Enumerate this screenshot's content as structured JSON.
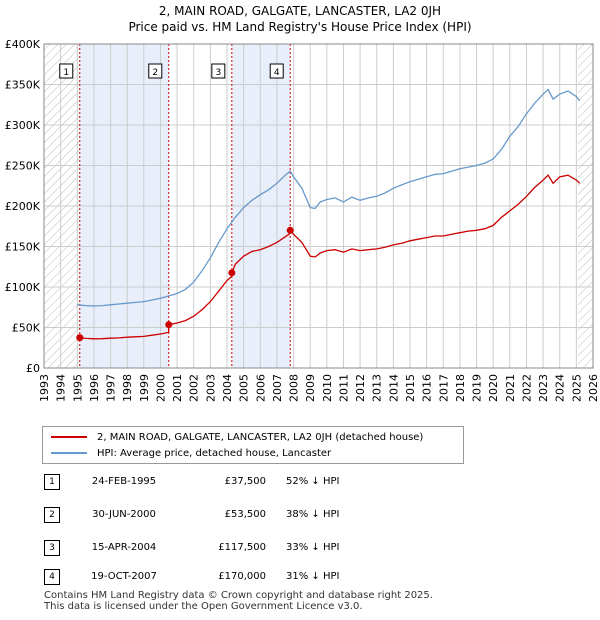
{
  "title_line1": "2, MAIN ROAD, GALGATE, LANCASTER, LA2 0JH",
  "title_line2": "Price paid vs. HM Land Registry's House Price Index (HPI)",
  "colors": {
    "price_line": "#cc0000",
    "hpi_line": "#6699cc",
    "shade": "#e8eefa",
    "grid": "#cccccc",
    "marker_line": "#cc0000"
  },
  "legend": {
    "price_label": "2, MAIN ROAD, GALGATE, LANCASTER, LA2 0JH (detached house)",
    "hpi_label": "HPI: Average price, detached house, Lancaster"
  },
  "transactions": [
    {
      "num": "1",
      "date": "24-FEB-1995",
      "price": "£37,500",
      "hpi": "52% ↓ HPI"
    },
    {
      "num": "2",
      "date": "30-JUN-2000",
      "price": "£53,500",
      "hpi": "38% ↓ HPI"
    },
    {
      "num": "3",
      "date": "15-APR-2004",
      "price": "£117,500",
      "hpi": "33% ↓ HPI"
    },
    {
      "num": "4",
      "date": "19-OCT-2007",
      "price": "£170,000",
      "hpi": "31% ↓ HPI"
    }
  ],
  "footer": {
    "line1": "Contains HM Land Registry data © Crown copyright and database right 2025.",
    "line2": "This data is licensed under the Open Government Licence v3.0."
  },
  "chart_data": {
    "type": "line",
    "title": "Price paid vs. HM Land Registry's House Price Index (HPI)",
    "xlim": [
      1993,
      2026
    ],
    "ylim": [
      0,
      400000
    ],
    "x_ticks": [
      1993,
      1994,
      1995,
      1996,
      1997,
      1998,
      1999,
      2000,
      2001,
      2002,
      2003,
      2004,
      2005,
      2006,
      2007,
      2008,
      2009,
      2010,
      2011,
      2012,
      2013,
      2014,
      2015,
      2016,
      2017,
      2018,
      2019,
      2020,
      2021,
      2022,
      2023,
      2024,
      2025,
      2026
    ],
    "y_ticks": [
      0,
      50000,
      100000,
      150000,
      200000,
      250000,
      300000,
      350000,
      400000
    ],
    "y_tick_labels": [
      "£0",
      "£50K",
      "£100K",
      "£150K",
      "£200K",
      "£250K",
      "£300K",
      "£350K",
      "£400K"
    ],
    "shaded_ranges": [
      [
        1995.15,
        2000.5
      ],
      [
        2004.29,
        2007.8
      ]
    ],
    "hatched_ranges": [
      [
        1993,
        1995.15
      ],
      [
        2025.1,
        2026
      ]
    ],
    "series": [
      {
        "name": "2, MAIN ROAD, GALGATE, LANCASTER, LA2 0JH (detached house)",
        "x": [
          1995.15,
          1995.5,
          1996,
          1996.5,
          1997,
          1997.5,
          1998,
          1998.5,
          1999,
          1999.5,
          2000,
          2000.49,
          2000.5,
          2001,
          2001.5,
          2002,
          2002.5,
          2003,
          2003.5,
          2004,
          2004.28,
          2004.29,
          2004.5,
          2005,
          2005.5,
          2006,
          2006.5,
          2007,
          2007.5,
          2007.79,
          2007.8,
          2008,
          2008.5,
          2009,
          2009.3,
          2009.6,
          2010,
          2010.5,
          2011,
          2011.5,
          2012,
          2012.5,
          2013,
          2013.5,
          2014,
          2014.5,
          2015,
          2015.5,
          2016,
          2016.5,
          2017,
          2017.5,
          2018,
          2018.5,
          2019,
          2019.5,
          2020,
          2020.5,
          2021,
          2021.5,
          2022,
          2022.5,
          2023,
          2023.3,
          2023.6,
          2024,
          2024.5,
          2025,
          2025.2
        ],
        "y": [
          37500,
          36500,
          36000,
          36200,
          36800,
          37200,
          38000,
          38500,
          39000,
          40500,
          42000,
          44000,
          53500,
          55500,
          58500,
          64000,
          72000,
          82000,
          95000,
          108000,
          113000,
          117500,
          128000,
          138000,
          144000,
          146000,
          150000,
          155000,
          162000,
          166000,
          170000,
          165000,
          155000,
          138000,
          137000,
          142000,
          145000,
          146000,
          143000,
          147000,
          145000,
          146000,
          147000,
          149000,
          152000,
          154000,
          157000,
          159000,
          161000,
          163000,
          163000,
          165000,
          167000,
          169000,
          170000,
          172000,
          176000,
          186000,
          194000,
          202000,
          212000,
          223000,
          232000,
          238000,
          228000,
          236000,
          238000,
          232000,
          228000
        ]
      },
      {
        "name": "HPI: Average price, detached house, Lancaster",
        "x": [
          1995,
          1995.5,
          1996,
          1996.5,
          1997,
          1997.5,
          1998,
          1998.5,
          1999,
          1999.5,
          2000,
          2000.5,
          2001,
          2001.5,
          2002,
          2002.5,
          2003,
          2003.5,
          2004,
          2004.5,
          2005,
          2005.5,
          2006,
          2006.5,
          2007,
          2007.5,
          2007.8,
          2008,
          2008.5,
          2009,
          2009.3,
          2009.6,
          2010,
          2010.5,
          2011,
          2011.5,
          2012,
          2012.5,
          2013,
          2013.5,
          2014,
          2014.5,
          2015,
          2015.5,
          2016,
          2016.5,
          2017,
          2017.5,
          2018,
          2018.5,
          2019,
          2019.5,
          2020,
          2020.5,
          2021,
          2021.5,
          2022,
          2022.5,
          2023,
          2023.3,
          2023.6,
          2024,
          2024.5,
          2025,
          2025.2
        ],
        "y": [
          78000,
          77000,
          76500,
          77000,
          78000,
          79000,
          80000,
          81000,
          82000,
          84000,
          86000,
          89000,
          92000,
          97000,
          106000,
          120000,
          136000,
          155000,
          172000,
          186000,
          198000,
          207000,
          214000,
          220000,
          228000,
          238000,
          243000,
          236000,
          222000,
          198000,
          197000,
          205000,
          208000,
          210000,
          205000,
          211000,
          207000,
          210000,
          212000,
          216000,
          222000,
          226000,
          230000,
          233000,
          236000,
          239000,
          240000,
          243000,
          246000,
          248000,
          250000,
          253000,
          258000,
          270000,
          286000,
          298000,
          314000,
          327000,
          338000,
          344000,
          332000,
          338000,
          342000,
          335000,
          330000
        ]
      }
    ],
    "sale_markers": [
      {
        "label": "1",
        "x": 1995.15,
        "y": 37500
      },
      {
        "label": "2",
        "x": 2000.5,
        "y": 53500
      },
      {
        "label": "3",
        "x": 2004.29,
        "y": 117500
      },
      {
        "label": "4",
        "x": 2007.8,
        "y": 170000
      }
    ]
  }
}
